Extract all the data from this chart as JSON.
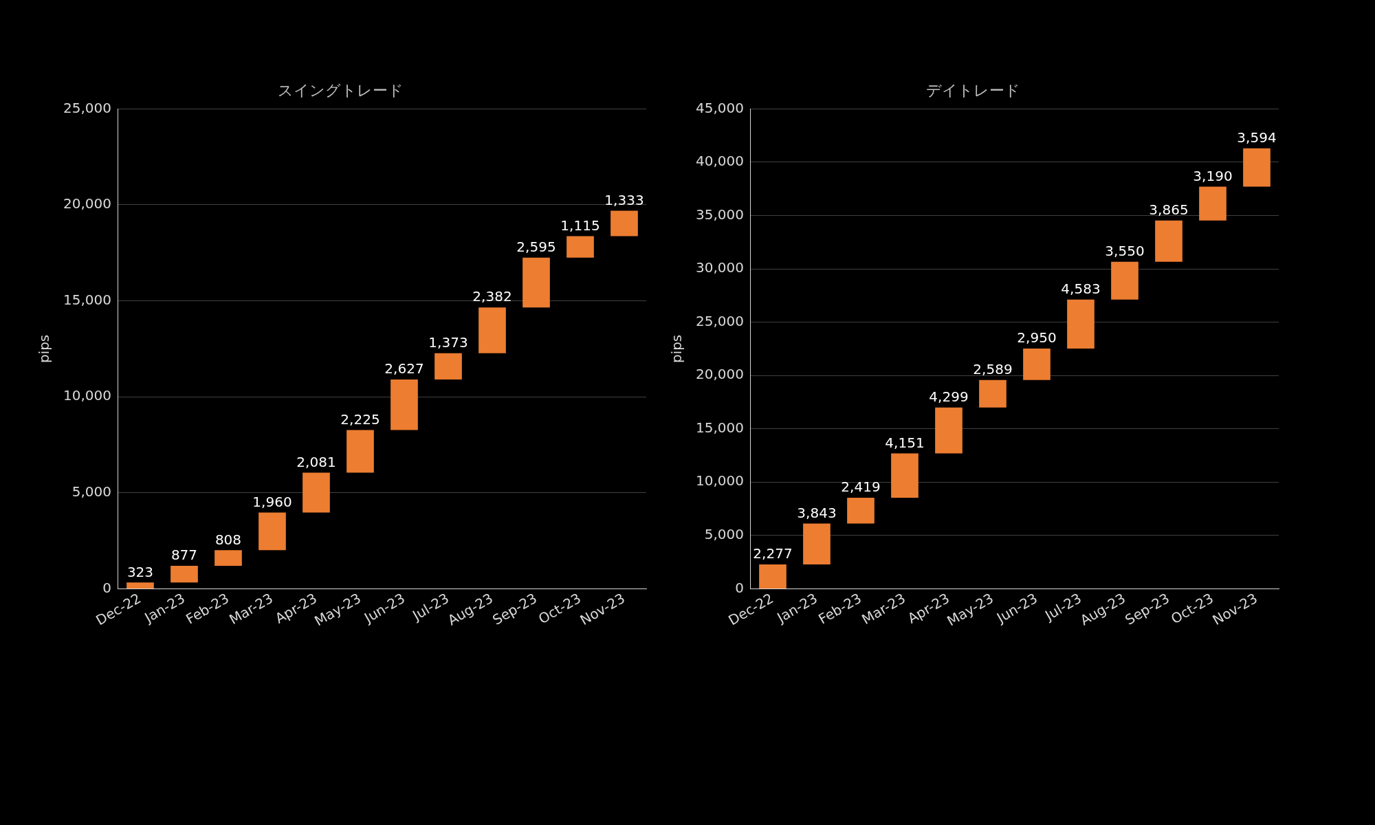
{
  "chart_data": [
    {
      "type": "bar",
      "title": "スイングトレード",
      "ylabel": "pips",
      "categories": [
        "Dec-22",
        "Jan-23",
        "Feb-23",
        "Mar-23",
        "Apr-23",
        "May-23",
        "Jun-23",
        "Jul-23",
        "Aug-23",
        "Sep-23",
        "Oct-23",
        "Nov-23"
      ],
      "values": [
        323,
        877,
        808,
        1960,
        2081,
        2225,
        2627,
        1373,
        2382,
        2595,
        1115,
        1333
      ],
      "base": [
        0,
        323,
        1200,
        2008,
        3968,
        6049,
        8274,
        10901,
        12274,
        14656,
        17251,
        18366
      ],
      "value_labels": [
        "323",
        "877",
        "808",
        "1,960",
        "2,081",
        "2,225",
        "2,627",
        "1,373",
        "2,382",
        "2,595",
        "1,115",
        "1,333"
      ],
      "color": "#ed7d31",
      "ylim": [
        0,
        25000
      ],
      "yticks": [
        {
          "value": 0,
          "label": "0"
        },
        {
          "value": 5000,
          "label": "5,000"
        },
        {
          "value": 10000,
          "label": "10,000"
        },
        {
          "value": 15000,
          "label": "15,000"
        },
        {
          "value": 20000,
          "label": "20,000"
        },
        {
          "value": 25000,
          "label": "25,000"
        }
      ],
      "grid": "y"
    },
    {
      "type": "bar",
      "title": "デイトレード",
      "ylabel": "pips",
      "categories": [
        "Dec-22",
        "Jan-23",
        "Feb-23",
        "Mar-23",
        "Apr-23",
        "May-23",
        "Jun-23",
        "Jul-23",
        "Aug-23",
        "Sep-23",
        "Oct-23",
        "Nov-23"
      ],
      "values": [
        2277,
        3843,
        2419,
        4151,
        4299,
        2589,
        2950,
        4583,
        3550,
        3865,
        3190,
        3594
      ],
      "base": [
        0,
        2277,
        6120,
        8539,
        12690,
        16989,
        19578,
        22528,
        27111,
        30661,
        34526,
        37716
      ],
      "value_labels": [
        "2,277",
        "3,843",
        "2,419",
        "4,151",
        "4,299",
        "2,589",
        "2,950",
        "4,583",
        "3,550",
        "3,865",
        "3,190",
        "3,594"
      ],
      "color": "#ed7d31",
      "ylim": [
        0,
        45000
      ],
      "yticks": [
        {
          "value": 0,
          "label": "0"
        },
        {
          "value": 5000,
          "label": "5,000"
        },
        {
          "value": 10000,
          "label": "10,000"
        },
        {
          "value": 15000,
          "label": "15,000"
        },
        {
          "value": 20000,
          "label": "20,000"
        },
        {
          "value": 25000,
          "label": "25,000"
        },
        {
          "value": 30000,
          "label": "30,000"
        },
        {
          "value": 35000,
          "label": "35,000"
        },
        {
          "value": 40000,
          "label": "40,000"
        },
        {
          "value": 45000,
          "label": "45,000"
        }
      ],
      "grid": "y"
    }
  ]
}
